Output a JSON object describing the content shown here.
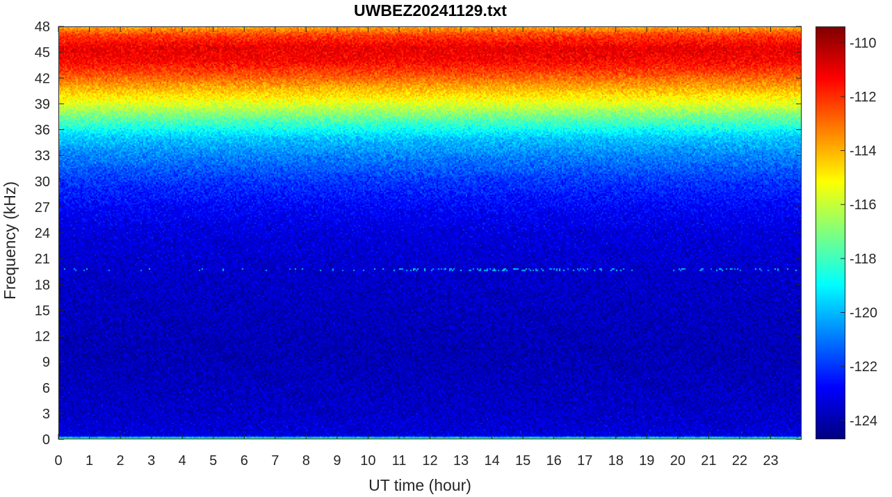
{
  "chart_data": {
    "type": "heatmap",
    "title": "UWBEZ20241129.txt",
    "xlabel": "UT time (hour)",
    "ylabel": "Frequency (kHz)",
    "xlim": [
      0,
      24
    ],
    "ylim": [
      0,
      48
    ],
    "x_ticks": [
      0,
      1,
      2,
      3,
      4,
      5,
      6,
      7,
      8,
      9,
      10,
      11,
      12,
      13,
      14,
      15,
      16,
      17,
      18,
      19,
      20,
      21,
      22,
      23
    ],
    "y_ticks": [
      0,
      3,
      6,
      9,
      12,
      15,
      18,
      21,
      24,
      27,
      30,
      33,
      36,
      39,
      42,
      45,
      48
    ],
    "colorbar": {
      "colormap": "jet",
      "clim": [
        -124.7,
        -109.4
      ],
      "ticks": [
        -124,
        -122,
        -120,
        -118,
        -116,
        -114,
        -112,
        -110
      ]
    },
    "profile_by_frequency_khz": {
      "frequency": [
        0,
        0.4,
        1,
        3,
        10,
        19,
        24,
        27,
        30,
        33,
        35,
        37,
        39,
        41,
        42.5,
        44,
        45.5,
        47,
        48
      ],
      "level_db": [
        -116.5,
        -123.2,
        -123.4,
        -123.6,
        -123.9,
        -123.6,
        -123.3,
        -122.8,
        -122.0,
        -120.8,
        -119.8,
        -117.8,
        -115.6,
        -113.8,
        -112.4,
        -111.3,
        -111.0,
        -112.2,
        -114.0
      ]
    },
    "persistent_lines": [
      {
        "frequency_khz": 19.7,
        "level_db": -120.0,
        "strongest_hours": [
          11.0,
          18.5
        ]
      }
    ]
  }
}
